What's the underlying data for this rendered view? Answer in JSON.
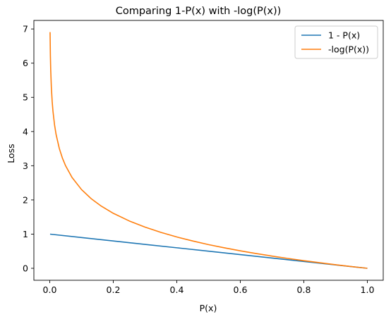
{
  "chart_data": {
    "type": "line",
    "title": "Comparing 1-P(x) with -log(P(x))",
    "xlabel": "P(x)",
    "ylabel": "Loss",
    "xlim": [
      -0.05,
      1.05
    ],
    "ylim": [
      -0.35,
      7.25
    ],
    "x_ticks": [
      0.0,
      0.2,
      0.4,
      0.6,
      0.8,
      1.0
    ],
    "x_tick_labels": [
      "0.0",
      "0.2",
      "0.4",
      "0.6",
      "0.8",
      "1.0"
    ],
    "y_ticks": [
      0,
      1,
      2,
      3,
      4,
      5,
      6,
      7
    ],
    "y_tick_labels": [
      "0",
      "1",
      "2",
      "3",
      "4",
      "5",
      "6",
      "7"
    ],
    "grid": false,
    "legend_position": "top-right",
    "series": [
      {
        "name": "1 - P(x)",
        "color": "#1f77b4",
        "x": [
          0.001,
          0.1,
          0.2,
          0.3,
          0.4,
          0.5,
          0.6,
          0.7,
          0.8,
          0.9,
          1.0
        ],
        "y": [
          0.999,
          0.9,
          0.8,
          0.7,
          0.6,
          0.5,
          0.4,
          0.3,
          0.2,
          0.1,
          0.0
        ]
      },
      {
        "name": "-log(P(x))",
        "color": "#ff7f0e",
        "x": [
          0.001,
          0.002,
          0.003,
          0.005,
          0.0075,
          0.01,
          0.015,
          0.02,
          0.03,
          0.04,
          0.05,
          0.07,
          0.1,
          0.13,
          0.16,
          0.2,
          0.25,
          0.3,
          0.35,
          0.4,
          0.45,
          0.5,
          0.55,
          0.6,
          0.65,
          0.7,
          0.75,
          0.8,
          0.85,
          0.9,
          0.95,
          1.0
        ],
        "y": [
          6.908,
          6.215,
          5.809,
          5.298,
          4.893,
          4.605,
          4.2,
          3.912,
          3.507,
          3.219,
          2.996,
          2.659,
          2.303,
          2.04,
          1.833,
          1.609,
          1.386,
          1.204,
          1.05,
          0.916,
          0.799,
          0.693,
          0.598,
          0.511,
          0.431,
          0.357,
          0.288,
          0.223,
          0.163,
          0.105,
          0.051,
          0.0
        ]
      }
    ]
  }
}
